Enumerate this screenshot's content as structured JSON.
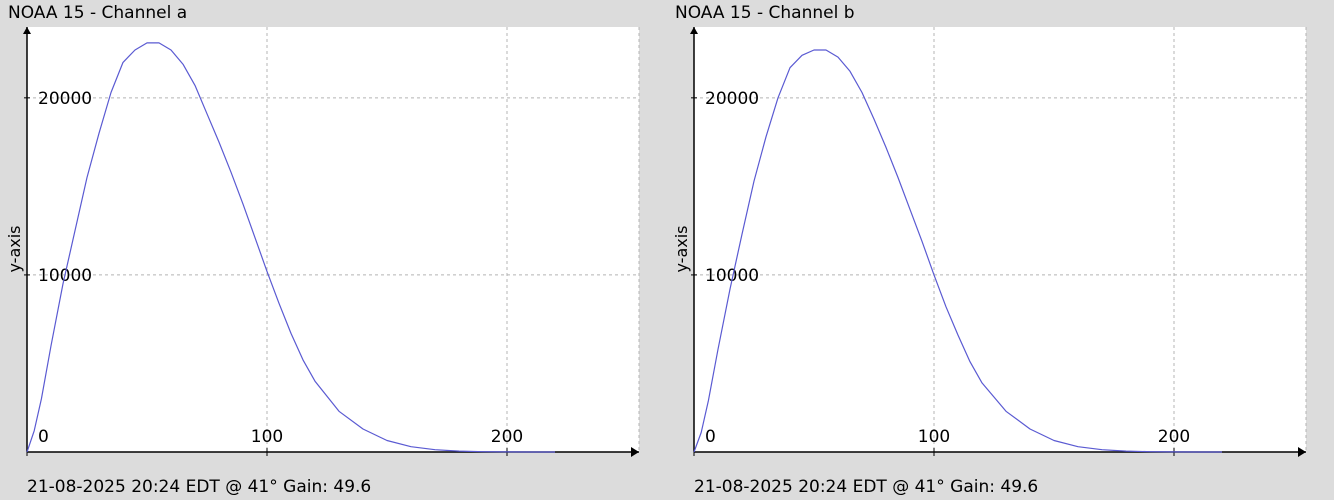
{
  "colors": {
    "background": "#dcdcdc",
    "plot_bg": "#ffffff",
    "series": "#5a5ad2",
    "grid": "#b4b4b4",
    "axis": "#000000"
  },
  "chart_data": [
    {
      "type": "line",
      "title": "NOAA 15 - Channel a",
      "footer": "21-08-2025 20:24 EDT @ 41° Gain: 49.6",
      "xlabel": "",
      "ylabel": "y-axis",
      "xlim": [
        0,
        255
      ],
      "ylim": [
        0,
        24000
      ],
      "xticks": [
        0,
        100,
        200
      ],
      "yticks": [
        10000,
        20000
      ],
      "grid": true,
      "series": [
        {
          "x": [
            0,
            3,
            6,
            10,
            15,
            20,
            25,
            30,
            35,
            40,
            45,
            50,
            55,
            60,
            65,
            70,
            75,
            80,
            85,
            90,
            95,
            100,
            105,
            110,
            115,
            120,
            130,
            140,
            150,
            160,
            170,
            180,
            190,
            200,
            210,
            220
          ],
          "values": [
            0,
            1200,
            3000,
            6000,
            9500,
            12500,
            15500,
            18000,
            20300,
            22000,
            22700,
            23100,
            23100,
            22700,
            21900,
            20700,
            19100,
            17500,
            15800,
            14000,
            12100,
            10200,
            8400,
            6700,
            5200,
            4000,
            2300,
            1300,
            650,
            300,
            130,
            50,
            15,
            5,
            2,
            0
          ]
        }
      ]
    },
    {
      "type": "line",
      "title": "NOAA 15 - Channel b",
      "footer": "21-08-2025 20:24 EDT @ 41° Gain: 49.6",
      "xlabel": "",
      "ylabel": "y-axis",
      "xlim": [
        0,
        255
      ],
      "ylim": [
        0,
        24000
      ],
      "xticks": [
        0,
        100,
        200
      ],
      "yticks": [
        10000,
        20000
      ],
      "grid": true,
      "series": [
        {
          "x": [
            0,
            3,
            6,
            10,
            15,
            20,
            25,
            30,
            35,
            40,
            45,
            50,
            55,
            60,
            65,
            70,
            75,
            80,
            85,
            90,
            95,
            100,
            105,
            110,
            115,
            120,
            130,
            140,
            150,
            160,
            170,
            180,
            190,
            200,
            210,
            220
          ],
          "values": [
            0,
            1100,
            2900,
            5800,
            9200,
            12300,
            15300,
            17800,
            20000,
            21700,
            22400,
            22700,
            22700,
            22300,
            21500,
            20300,
            18800,
            17200,
            15500,
            13700,
            11900,
            10000,
            8200,
            6600,
            5100,
            3900,
            2300,
            1300,
            650,
            300,
            130,
            50,
            15,
            5,
            2,
            0
          ]
        }
      ]
    }
  ]
}
